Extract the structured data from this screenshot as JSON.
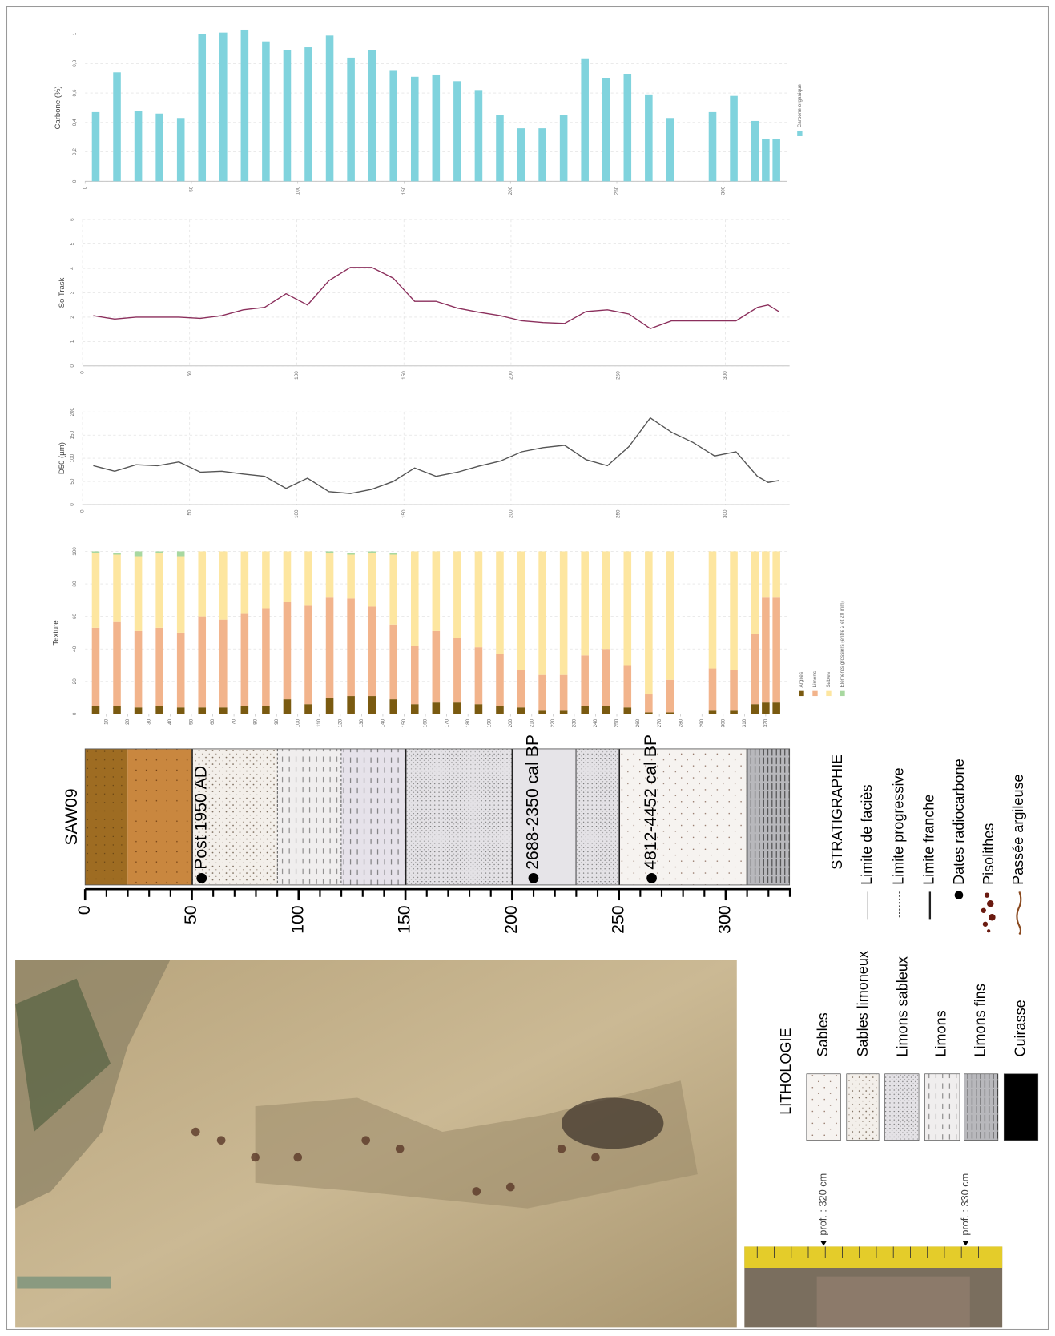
{
  "chart_data": [
    {
      "type": "bar",
      "y_label": "Carbone (%)",
      "x": [
        5,
        15,
        25,
        35,
        45,
        55,
        65,
        75,
        85,
        95,
        105,
        115,
        125,
        135,
        145,
        155,
        165,
        175,
        185,
        195,
        205,
        215,
        225,
        235,
        245,
        255,
        265,
        275,
        295,
        305,
        315,
        320,
        325
      ],
      "series": [
        {
          "name": "Carbone organique",
          "color": "#80d3dd",
          "values": [
            0.47,
            0.74,
            0.48,
            0.46,
            0.43,
            1.0,
            1.01,
            1.03,
            0.95,
            0.89,
            0.91,
            0.99,
            0.84,
            0.89,
            0.75,
            0.71,
            0.72,
            0.68,
            0.62,
            0.45,
            0.36,
            0.36,
            0.45,
            0.83,
            0.7,
            0.73,
            0.59,
            0.43,
            0.47,
            0.58,
            0.41,
            0.29,
            0.29
          ]
        }
      ],
      "xlim": [
        0,
        330
      ],
      "xticks": [
        0,
        50,
        100,
        150,
        200,
        250,
        300
      ],
      "ylim": [
        0,
        1
      ],
      "yticks": [
        0,
        {
          "value": 0.2,
          "label": "0,2"
        },
        {
          "value": 0.4,
          "label": "0,4"
        },
        {
          "value": 0.6,
          "label": "0,6"
        },
        {
          "value": 0.8,
          "label": "0,8"
        },
        1
      ],
      "grid": true,
      "legend": "right"
    },
    {
      "type": "line",
      "y_label": "So Trask",
      "color": "#8b2f5c",
      "x": [
        5,
        15,
        25,
        35,
        45,
        55,
        65,
        75,
        85,
        95,
        105,
        115,
        125,
        135,
        145,
        155,
        165,
        175,
        185,
        195,
        205,
        215,
        225,
        235,
        245,
        255,
        265,
        275,
        295,
        305,
        315,
        320,
        325
      ],
      "values": [
        2.06,
        1.92,
        2.0,
        2.0,
        2.0,
        1.95,
        2.06,
        2.3,
        2.4,
        2.96,
        2.5,
        3.5,
        4.04,
        4.04,
        3.6,
        2.65,
        2.65,
        2.37,
        2.2,
        2.06,
        1.85,
        1.78,
        1.74,
        2.23,
        2.3,
        2.13,
        1.53,
        1.85,
        1.85,
        1.85,
        2.4,
        2.5,
        2.23
      ],
      "xlim": [
        0,
        330
      ],
      "xticks": [
        0,
        50,
        100,
        150,
        200,
        250,
        300
      ],
      "ylim": [
        0,
        6
      ],
      "yticks": [
        0,
        1,
        2,
        3,
        4,
        5,
        6
      ],
      "grid": true
    },
    {
      "type": "line",
      "y_label": "D50 (µm)",
      "color": "#555555",
      "x": [
        5,
        15,
        25,
        35,
        45,
        55,
        65,
        75,
        85,
        95,
        105,
        115,
        125,
        135,
        145,
        155,
        165,
        175,
        185,
        195,
        205,
        215,
        225,
        235,
        245,
        255,
        265,
        275,
        285,
        295,
        305,
        315,
        320,
        325
      ],
      "values": [
        84,
        72,
        86,
        84,
        92,
        70,
        72,
        66,
        61,
        35,
        57,
        28,
        24,
        33,
        50,
        79,
        61,
        70,
        83,
        94,
        114,
        123,
        128,
        97,
        84,
        125,
        187,
        156,
        134,
        105,
        114,
        61,
        48,
        52
      ],
      "xlim": [
        0,
        330
      ],
      "xticks": [
        0,
        50,
        100,
        150,
        200,
        250,
        300
      ],
      "ylim": [
        0,
        200
      ],
      "yticks": [
        0,
        50,
        100,
        150,
        200
      ],
      "grid": true
    },
    {
      "type": "bar",
      "stacked": true,
      "y_label": "Texture",
      "x": [
        5,
        15,
        25,
        35,
        45,
        55,
        65,
        75,
        85,
        95,
        105,
        115,
        125,
        135,
        145,
        155,
        165,
        175,
        185,
        195,
        205,
        215,
        225,
        235,
        245,
        255,
        265,
        275,
        295,
        305,
        315,
        320,
        325
      ],
      "series": [
        {
          "name": "Argiles",
          "color": "#7a5a10",
          "values": [
            5,
            5,
            4,
            5,
            4,
            4,
            4,
            5,
            5,
            9,
            6,
            10,
            11,
            11,
            9,
            6,
            7,
            7,
            6,
            5,
            4,
            2,
            2,
            5,
            5,
            4,
            1,
            1,
            2,
            2,
            6,
            7,
            7
          ]
        },
        {
          "name": "Limons",
          "color": "#f2b48c",
          "values": [
            48,
            52,
            47,
            48,
            46,
            56,
            54,
            57,
            60,
            60,
            61,
            62,
            60,
            55,
            46,
            36,
            44,
            40,
            35,
            32,
            23,
            22,
            22,
            31,
            35,
            26,
            11,
            20,
            26,
            25,
            43,
            65,
            65
          ]
        },
        {
          "name": "Sables",
          "color": "#fde6a0",
          "values": [
            46,
            41,
            46,
            46,
            47,
            40,
            42,
            38,
            35,
            31,
            33,
            27,
            27,
            33,
            43,
            58,
            49,
            53,
            59,
            63,
            73,
            76,
            76,
            64,
            60,
            70,
            88,
            79,
            72,
            73,
            51,
            28,
            28
          ]
        },
        {
          "name": "Eléments grossiers (entre 2 et 20 mm)",
          "color": "#a8d8a0",
          "values": [
            1,
            1,
            3,
            1,
            3,
            0,
            0,
            0,
            0,
            0,
            0,
            1,
            1,
            1,
            1,
            0,
            0,
            0,
            0,
            0,
            0,
            0,
            0,
            0,
            0,
            0,
            0,
            0,
            0,
            0,
            0,
            0,
            0
          ]
        }
      ],
      "xlim": [
        0,
        330
      ],
      "xticks": [
        10,
        20,
        30,
        40,
        50,
        60,
        70,
        80,
        90,
        100,
        110,
        120,
        130,
        140,
        150,
        160,
        170,
        180,
        190,
        200,
        210,
        220,
        230,
        240,
        250,
        260,
        270,
        280,
        290,
        300,
        310,
        320
      ],
      "ylim": [
        0,
        100
      ],
      "yticks": [
        0,
        20,
        40,
        60,
        80,
        100
      ],
      "grid": true,
      "legend": "right"
    }
  ],
  "column": {
    "title": "SAW09",
    "ticks": [
      0,
      50,
      100,
      150,
      200,
      250,
      300
    ],
    "dates": [
      "Post 1950 AD",
      "2688-2350 cal BP",
      "4812-4452 cal BP"
    ]
  },
  "stratigraphy": {
    "title": "STRATIGRAPHIE",
    "items": [
      "Limite de faciès",
      "Limite progressive",
      "Limite franche",
      "Dates radiocarbone",
      "Pisolithes",
      "Passée argileuse"
    ]
  },
  "lithology": {
    "title": "LITHOLOGIE",
    "items": [
      "Sables",
      "Sables limoneux",
      "Limons sableux",
      "Limons",
      "Limons fins",
      "Cuirasse"
    ]
  },
  "tape": {
    "labels": [
      "prof. : 320 cm",
      "prof. : 330 cm"
    ]
  }
}
